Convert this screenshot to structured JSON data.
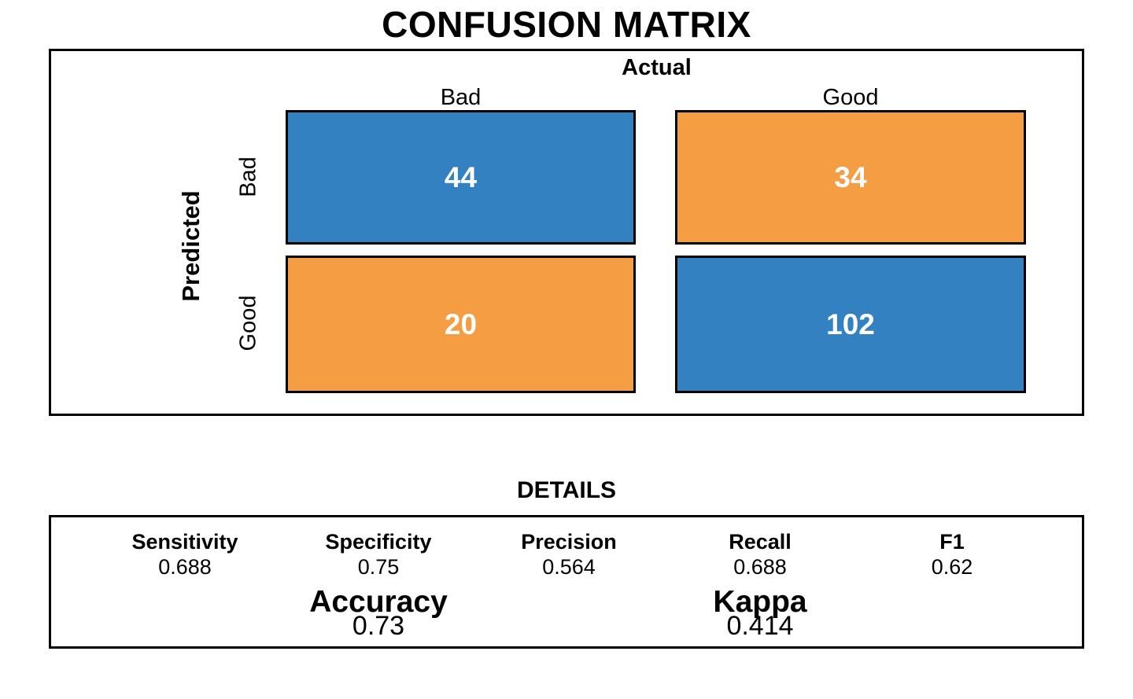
{
  "title": "CONFUSION MATRIX",
  "colors": {
    "blue": "#3381c1",
    "orange": "#f49d43",
    "cell_text": "#ffffff",
    "border": "#000000"
  },
  "matrix": {
    "actual_label": "Actual",
    "predicted_label": "Predicted",
    "col_headers": [
      "Bad",
      "Good"
    ],
    "row_headers": [
      "Bad",
      "Good"
    ],
    "cells": [
      [
        "44",
        "34"
      ],
      [
        "20",
        "102"
      ]
    ]
  },
  "details": {
    "title": "DETAILS",
    "metrics": [
      {
        "label": "Sensitivity",
        "value": "0.688"
      },
      {
        "label": "Specificity",
        "value": "0.75"
      },
      {
        "label": "Precision",
        "value": "0.564"
      },
      {
        "label": "Recall",
        "value": "0.688"
      },
      {
        "label": "F1",
        "value": "0.62"
      }
    ],
    "summary": [
      {
        "label": "Accuracy",
        "value": "0.73"
      },
      {
        "label": "Kappa",
        "value": "0.414"
      }
    ]
  },
  "chart_data": {
    "type": "heatmap",
    "title": "CONFUSION MATRIX",
    "x_axis_label": "Actual",
    "y_axis_label": "Predicted",
    "x_categories": [
      "Bad",
      "Good"
    ],
    "y_categories": [
      "Bad",
      "Good"
    ],
    "matrix": [
      [
        44,
        34
      ],
      [
        20,
        102
      ]
    ],
    "cell_colors": [
      [
        "#3381c1",
        "#f49d43"
      ],
      [
        "#f49d43",
        "#3381c1"
      ]
    ],
    "legend": "none",
    "grid": false,
    "details_title": "DETAILS",
    "metrics": {
      "Sensitivity": 0.688,
      "Specificity": 0.75,
      "Precision": 0.564,
      "Recall": 0.688,
      "F1": 0.62,
      "Accuracy": 0.73,
      "Kappa": 0.414
    }
  }
}
